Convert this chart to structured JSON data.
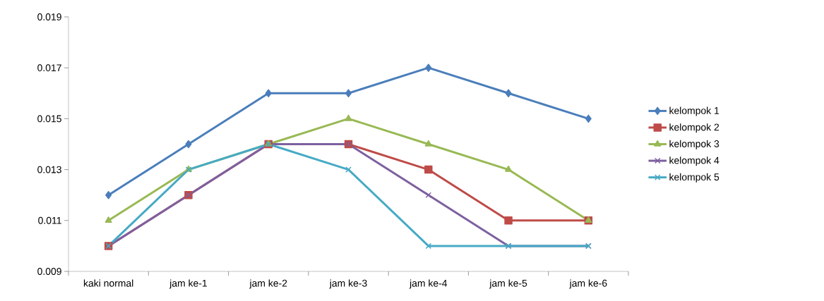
{
  "chart_data": {
    "type": "line",
    "categories": [
      "kaki normal",
      "jam ke-1",
      "jam ke-2",
      "jam ke-3",
      "jam ke-4",
      "jam ke-5",
      "jam ke-6"
    ],
    "series": [
      {
        "name": "kelompok 1",
        "color": "#4a7ebb",
        "marker": "diamond",
        "values": [
          0.012,
          0.014,
          0.016,
          0.016,
          0.017,
          0.016,
          0.015
        ]
      },
      {
        "name": "kelompok 2",
        "color": "#be4b48",
        "marker": "square",
        "values": [
          0.01,
          0.012,
          0.014,
          0.014,
          0.013,
          0.011,
          0.011
        ]
      },
      {
        "name": "kelompok 3",
        "color": "#98b954",
        "marker": "triangle",
        "values": [
          0.011,
          0.013,
          0.014,
          0.015,
          0.014,
          0.013,
          0.011
        ]
      },
      {
        "name": "kelompok 4",
        "color": "#7d60a0",
        "marker": "cross",
        "values": [
          0.01,
          0.012,
          0.014,
          0.014,
          0.012,
          0.01,
          0.01
        ]
      },
      {
        "name": "kelompok 5",
        "color": "#46aac5",
        "marker": "cross",
        "values": [
          0.01,
          0.013,
          0.014,
          0.013,
          0.01,
          0.01,
          0.01
        ]
      }
    ],
    "ylim": [
      0.009,
      0.019
    ],
    "yticks": [
      0.009,
      0.011,
      0.013,
      0.015,
      0.017,
      0.019
    ],
    "grid": false,
    "legend": "right",
    "line_style": "solid"
  }
}
